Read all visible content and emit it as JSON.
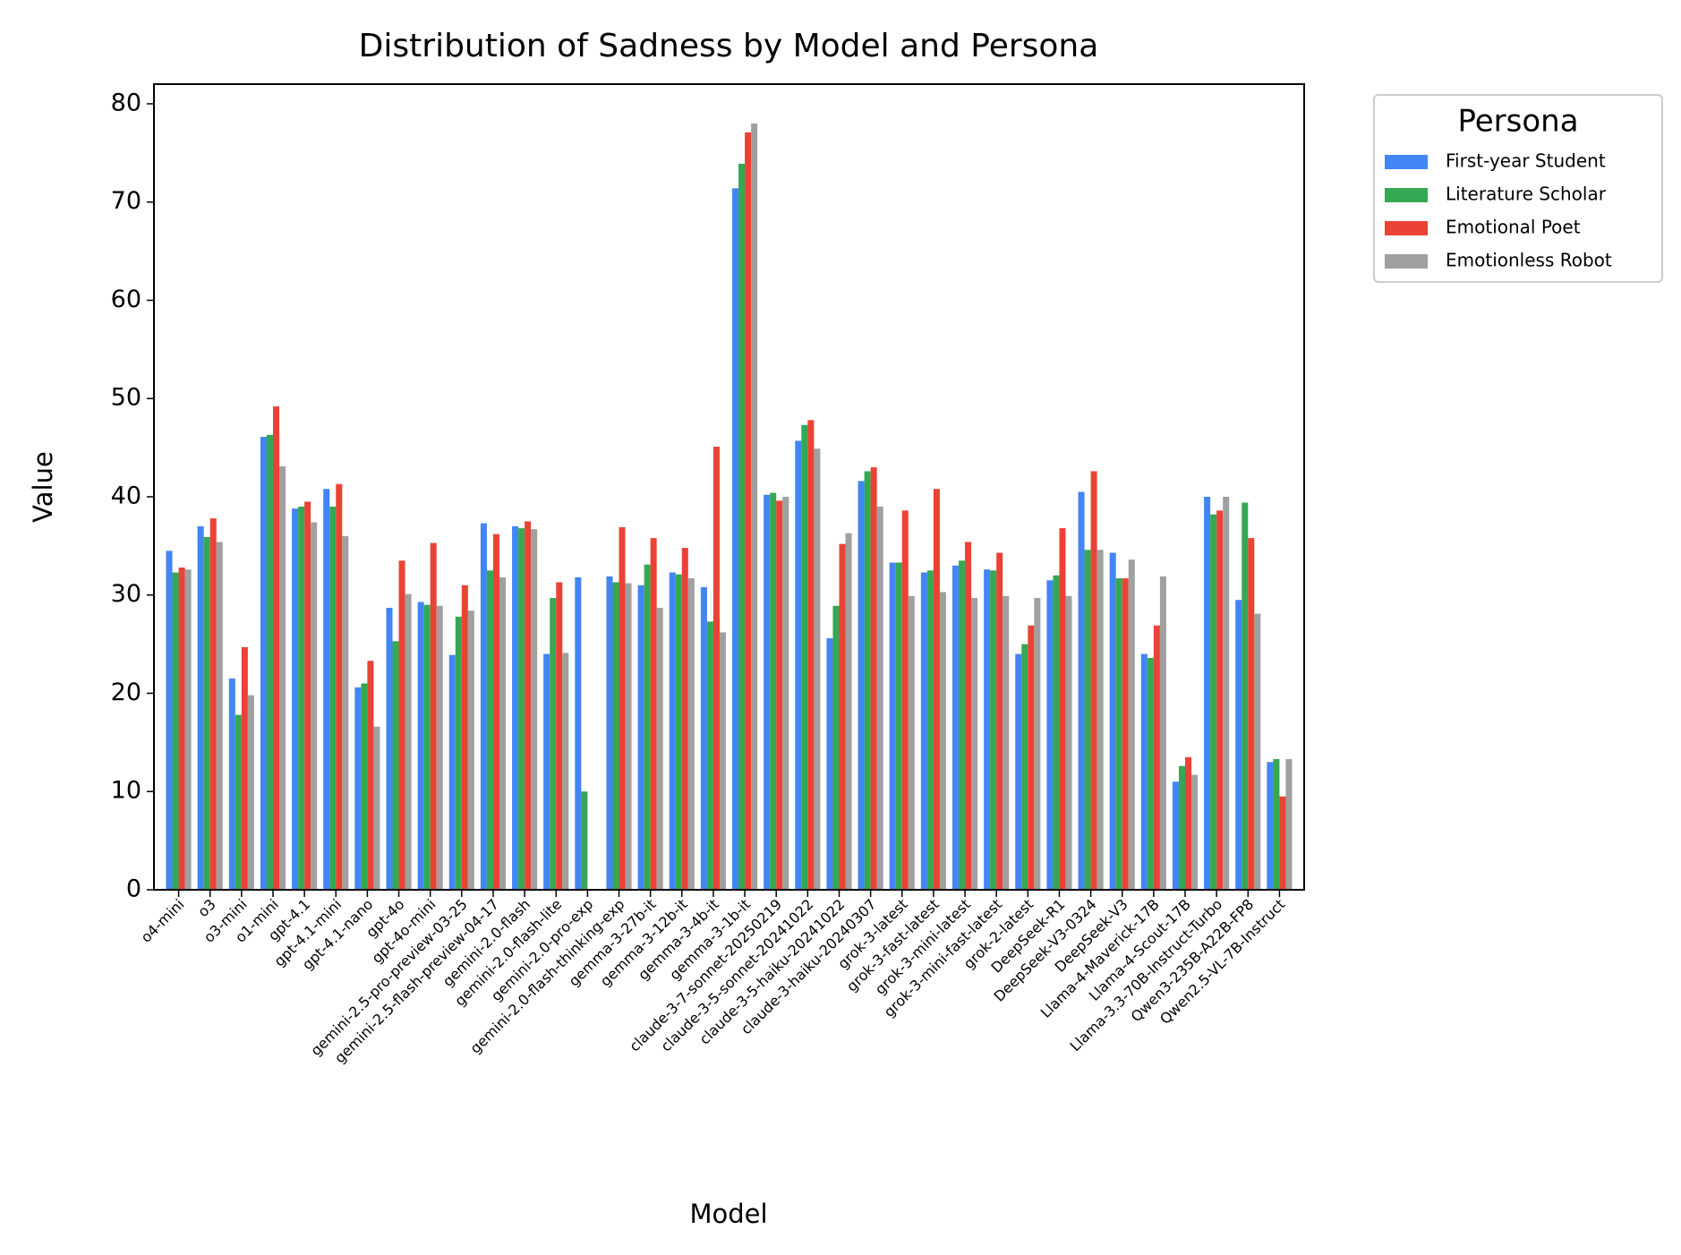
{
  "chart_data": {
    "type": "bar",
    "title": "Distribution of Sadness by Model and Persona",
    "x_label": "Model",
    "y_label": "Value",
    "legend_title": "Persona",
    "categories": [
      "o4-mini",
      "o3",
      "o3-mini",
      "o1-mini",
      "gpt-4.1",
      "gpt-4.1-mini",
      "gpt-4.1-nano",
      "gpt-4o",
      "gpt-4o-mini",
      "gemini-2.5-pro-preview-03-25",
      "gemini-2.5-flash-preview-04-17",
      "gemini-2.0-flash",
      "gemini-2.0-flash-lite",
      "gemini-2.0-pro-exp",
      "gemini-2.0-flash-thinking-exp",
      "gemma-3-27b-it",
      "gemma-3-12b-it",
      "gemma-3-4b-it",
      "gemma-3-1b-it",
      "claude-3-7-sonnet-20250219",
      "claude-3-5-sonnet-20241022",
      "claude-3-5-haiku-20241022",
      "claude-3-haiku-20240307",
      "grok-3-latest",
      "grok-3-fast-latest",
      "grok-3-mini-latest",
      "grok-3-mini-fast-latest",
      "grok-2-latest",
      "DeepSeek-R1",
      "DeepSeek-V3-0324",
      "DeepSeek-V3",
      "Llama-4-Maverick-17B",
      "Llama-4-Scout-17B",
      "Llama-3.3-70B-Instruct-Turbo",
      "Qwen3-235B-A22B-FP8",
      "Qwen2.5-VL-7B-Instruct"
    ],
    "series": [
      {
        "name": "First-year Student",
        "color": "#4285f4",
        "values": [
          34.5,
          37,
          21.5,
          46.1,
          38.8,
          40.8,
          20.6,
          28.7,
          29.3,
          23.9,
          37.3,
          37,
          24,
          31.8,
          31.9,
          31,
          32.3,
          30.8,
          71.4,
          40.2,
          45.7,
          25.6,
          41.6,
          33.3,
          32.3,
          33,
          32.6,
          24,
          31.5,
          40.5,
          34.3,
          24,
          11,
          40,
          29.5,
          13
        ]
      },
      {
        "name": "Literature Scholar",
        "color": "#34a853",
        "values": [
          32.3,
          35.9,
          17.8,
          46.3,
          39,
          39,
          21,
          25.3,
          29,
          27.8,
          32.5,
          36.8,
          29.7,
          10,
          31.3,
          33.1,
          32.1,
          27.3,
          73.9,
          40.4,
          47.3,
          28.9,
          42.6,
          33.3,
          32.5,
          33.5,
          32.5,
          25,
          32,
          34.6,
          31.7,
          23.6,
          12.6,
          38.2,
          39.4,
          13.3
        ]
      },
      {
        "name": "Emotional Poet",
        "color": "#ea4335",
        "values": [
          32.8,
          37.8,
          24.7,
          49.2,
          39.5,
          41.3,
          23.3,
          33.5,
          35.3,
          31,
          36.2,
          37.5,
          31.3,
          null,
          36.9,
          35.8,
          34.8,
          45.1,
          77.1,
          39.6,
          47.8,
          35.2,
          43,
          38.6,
          40.8,
          35.4,
          34.3,
          26.9,
          36.8,
          42.6,
          31.7,
          26.9,
          13.5,
          38.6,
          35.8,
          9.5
        ]
      },
      {
        "name": "Emotionless Robot",
        "color": "#a0a0a0",
        "values": [
          32.6,
          35.4,
          19.8,
          43.1,
          37.4,
          36,
          16.6,
          30.1,
          28.9,
          28.4,
          31.8,
          36.7,
          24.1,
          null,
          31.2,
          28.7,
          31.7,
          26.2,
          78,
          40,
          44.9,
          36.3,
          39,
          29.9,
          30.3,
          29.7,
          29.9,
          29.7,
          29.9,
          34.6,
          33.6,
          31.9,
          11.7,
          40,
          28.1,
          13.3
        ]
      }
    ],
    "ylim": [
      0,
      82
    ],
    "yticks": [
      0,
      10,
      20,
      30,
      40,
      50,
      60,
      70,
      80
    ],
    "legend": "outside upper right"
  }
}
